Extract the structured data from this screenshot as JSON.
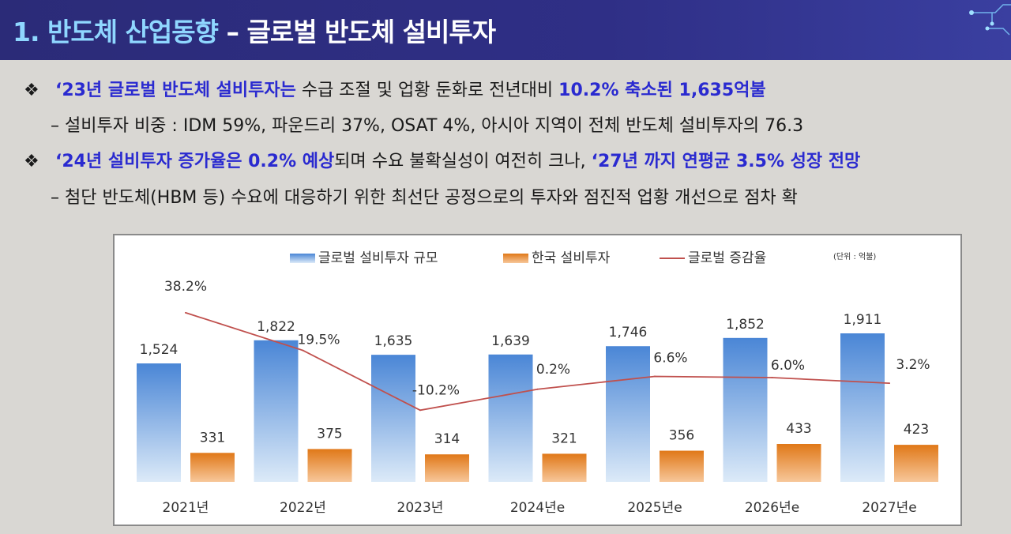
{
  "header": {
    "title_prefix": "1. 반도체 산업동향",
    "title_suffix": "– 글로벌 반도체 설비투자"
  },
  "bullets": [
    {
      "symbol": "❖",
      "highlight1": "‘23년 글로벌 반도체 설비투자는",
      "text": " 수급 조절 및 업황 둔화로 전년대비 ",
      "highlight2": "10.2% 축소된 1,635억불"
    },
    {
      "symbol": "❖",
      "highlight1": "‘24년 설비투자 증가율은 0.2% 예상",
      "text": "되며 수요 불확실성이 여전히 크나, ",
      "highlight2": "‘27년 까지 연평균 3.5% 성장 전망"
    }
  ],
  "subs": [
    "– 설비투자 비중 : IDM 59%, 파운드리 37%, OSAT 4%, 아시아 지역이 전체 반도체 설비투자의 76.3",
    "– 첨단 반도체(HBM 등) 수요에 대응하기 위한 최선단 공정으로의 투자와 점진적 업황 개선으로 점차 확"
  ],
  "colors": {
    "global_bar_top": "#4a86d6",
    "global_bar_bottom": "#dceaf8",
    "korea_bar_top": "#e07818",
    "korea_bar_bottom": "#f7c79a",
    "line": "#c0504d"
  },
  "chart_data": {
    "type": "bar",
    "unit_label": "(단위 : 억불)",
    "categories": [
      "2021년",
      "2022년",
      "2023년",
      "2024년e",
      "2025년e",
      "2026년e",
      "2027년e"
    ],
    "series": [
      {
        "name": "글로벌 설비투자 규모",
        "type": "bar",
        "values": [
          1524,
          1822,
          1635,
          1639,
          1746,
          1852,
          1911
        ],
        "labels": [
          "1,524",
          "1,822",
          "1,635",
          "1,639",
          "1,746",
          "1,852",
          "1,911"
        ]
      },
      {
        "name": "한국 설비투자",
        "type": "bar",
        "values": [
          331,
          375,
          314,
          321,
          356,
          433,
          423
        ],
        "labels": [
          "331",
          "375",
          "314",
          "321",
          "356",
          "433",
          "423"
        ]
      },
      {
        "name": "글로벌 증감율",
        "type": "line",
        "values": [
          38.2,
          19.5,
          -10.2,
          0.2,
          6.6,
          6.0,
          3.2
        ],
        "labels": [
          "38.2%",
          "19.5%",
          "-10.2%",
          "0.2%",
          "6.6%",
          "6.0%",
          "3.2%"
        ]
      }
    ]
  }
}
